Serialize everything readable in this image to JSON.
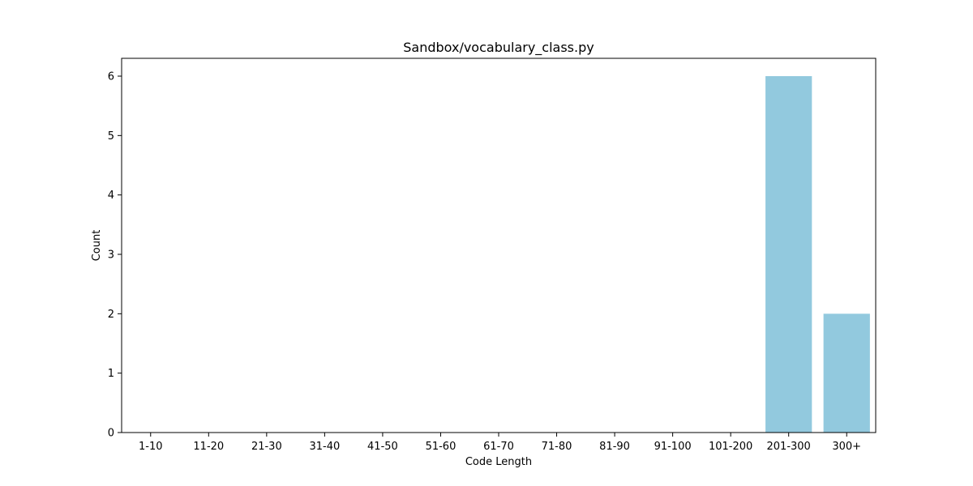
{
  "chart_data": {
    "type": "bar",
    "title": "Sandbox/vocabulary_class.py",
    "xlabel": "Code Length",
    "ylabel": "Count",
    "categories": [
      "1-10",
      "11-20",
      "21-30",
      "31-40",
      "41-50",
      "51-60",
      "61-70",
      "71-80",
      "81-90",
      "91-100",
      "101-200",
      "201-300",
      "300+"
    ],
    "values": [
      0,
      0,
      0,
      0,
      0,
      0,
      0,
      0,
      0,
      0,
      0,
      6,
      2
    ],
    "ylim": [
      0,
      6.3
    ],
    "yticks": [
      0,
      1,
      2,
      3,
      4,
      5,
      6
    ],
    "bar_color": "#92c9de",
    "grid": false,
    "legend": "none"
  }
}
